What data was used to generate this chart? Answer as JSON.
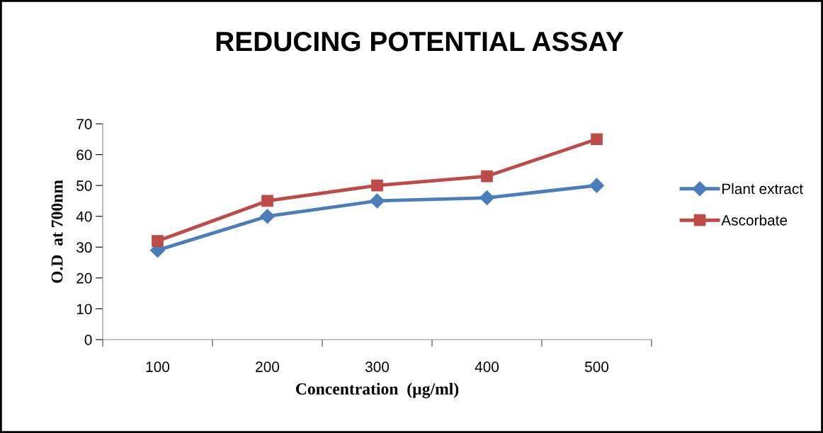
{
  "chart_data": {
    "type": "line",
    "title": "REDUCING POTENTIAL ASSAY",
    "xlabel": "Concentration  (µg/ml)",
    "ylabel": "O.D  at 700nm",
    "categories": [
      "100",
      "200",
      "300",
      "400",
      "500"
    ],
    "series": [
      {
        "name": "Plant extract",
        "color": "#4a7ebb",
        "marker": "diamond",
        "values": [
          29,
          40,
          45,
          46,
          50
        ]
      },
      {
        "name": "Ascorbate",
        "color": "#be4b48",
        "marker": "square",
        "values": [
          32,
          45,
          50,
          53,
          65
        ]
      }
    ],
    "ylim": [
      0,
      70
    ],
    "yticks": [
      0,
      10,
      20,
      30,
      40,
      50,
      60,
      70
    ],
    "grid": false,
    "legend": "right",
    "line_style": "solid"
  }
}
